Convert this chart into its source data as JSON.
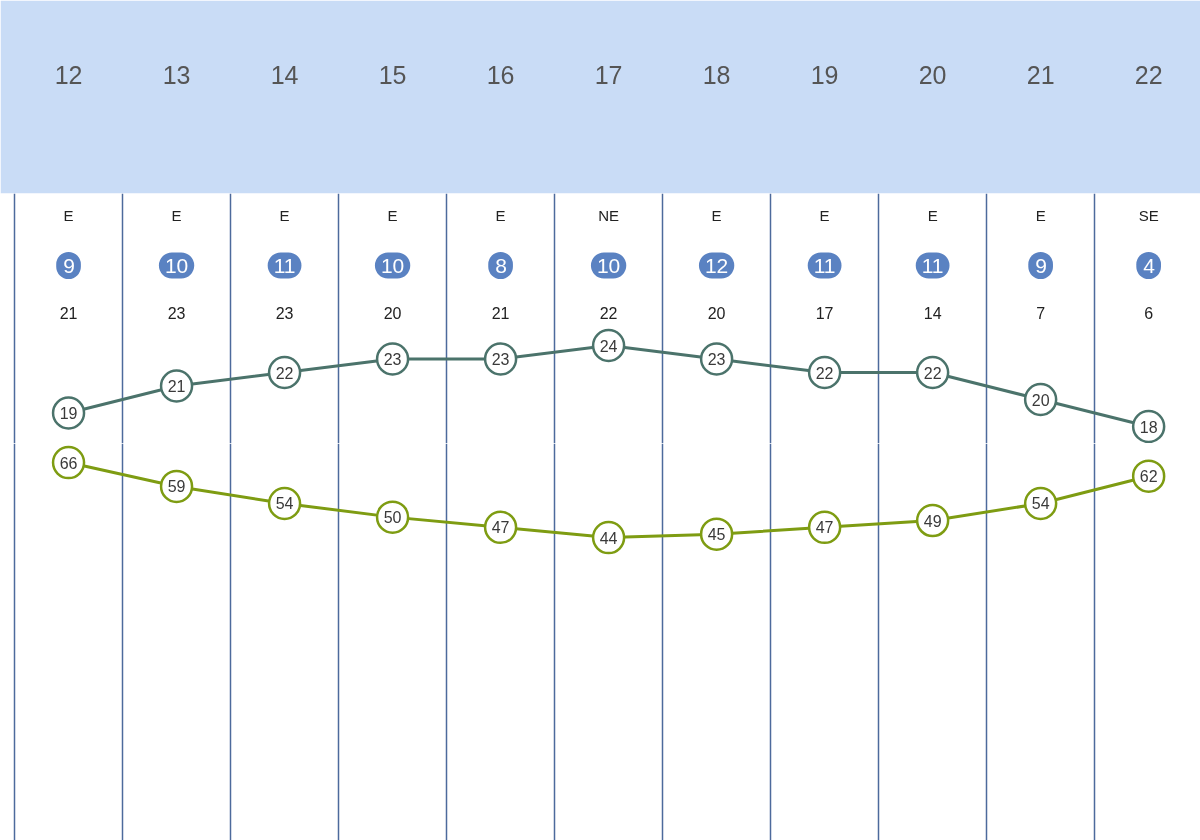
{
  "chart_data": [
    {
      "type": "line",
      "categories": [
        "12",
        "13",
        "14",
        "15",
        "16",
        "17",
        "18",
        "19",
        "20",
        "21",
        "22"
      ],
      "series": [
        {
          "color": "#4b736b",
          "values": [
            19,
            21,
            22,
            23,
            23,
            24,
            23,
            22,
            22,
            20,
            18
          ]
        }
      ],
      "data_labels": true,
      "marker": "circle",
      "line_style": "solid",
      "grid": "x",
      "tick_labels": "x",
      "annotations": [
        "E",
        "9",
        "21",
        "E",
        "10",
        "23",
        "E",
        "11",
        "23",
        "E",
        "10",
        "20",
        "E",
        "8",
        "21",
        "NE",
        "10",
        "22",
        "E",
        "12",
        "20",
        "E",
        "11",
        "17",
        "E",
        "11",
        "14",
        "E",
        "9",
        "7",
        "SE",
        "4",
        "6"
      ]
    },
    {
      "type": "line",
      "categories": [
        "12",
        "13",
        "14",
        "15",
        "16",
        "17",
        "18",
        "19",
        "20",
        "21",
        "22"
      ],
      "series": [
        {
          "color": "#7e9c12",
          "values": [
            66,
            59,
            54,
            50,
            47,
            44,
            45,
            47,
            49,
            54,
            62
          ]
        }
      ],
      "data_labels": true,
      "marker": "circle",
      "line_style": "solid",
      "grid": "x",
      "tick_labels": false
    }
  ]
}
